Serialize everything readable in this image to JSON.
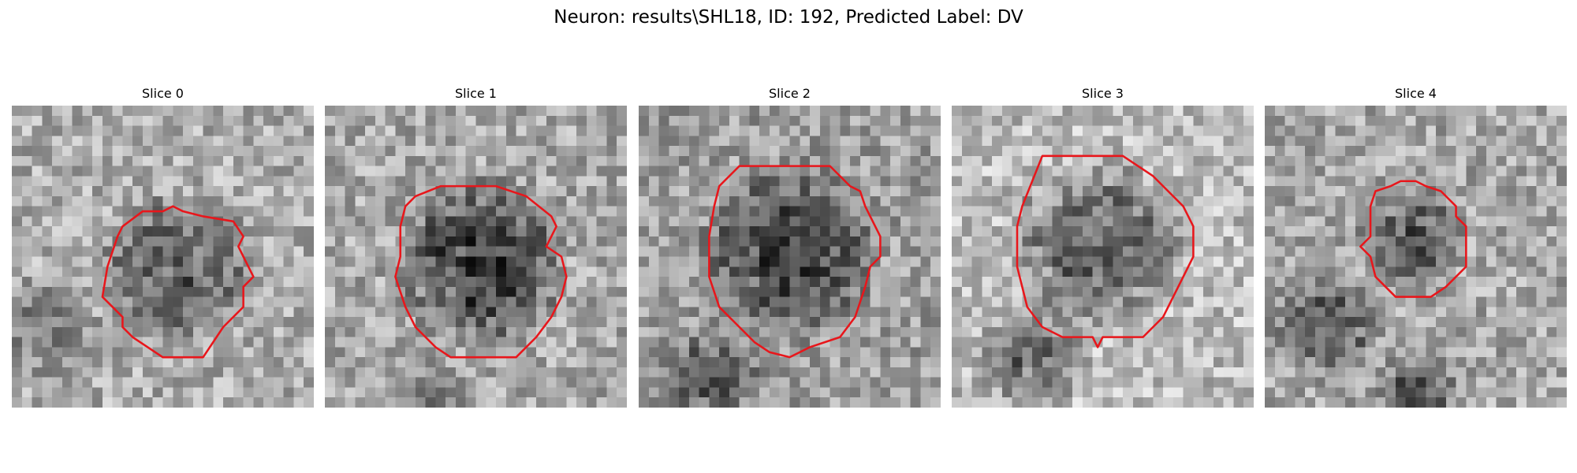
{
  "figure": {
    "title": "Neuron: results\\SHL18, ID: 192, Predicted Label: DV",
    "contour_color": "#e8161b",
    "colormap": "gray",
    "grid_size": 30,
    "panels": [
      {
        "title": "Slice 0",
        "seed": 11,
        "dark_blobs": [
          {
            "cx": 16.5,
            "cy": 16.5,
            "r": 8.5,
            "depth": 0.33
          }
        ],
        "base": 0.68,
        "edge_dark": [
          {
            "cx": 3,
            "cy": 22,
            "r": 6,
            "depth": 0.18
          }
        ],
        "contour": [
          [
            16,
            10
          ],
          [
            17,
            10.5
          ],
          [
            19,
            11
          ],
          [
            22,
            11.5
          ],
          [
            23,
            13
          ],
          [
            22.5,
            14
          ],
          [
            23,
            15
          ],
          [
            23.5,
            16
          ],
          [
            24,
            17
          ],
          [
            23,
            18
          ],
          [
            23,
            20
          ],
          [
            21,
            22
          ],
          [
            19,
            25
          ],
          [
            15,
            25
          ],
          [
            12,
            23
          ],
          [
            11,
            22
          ],
          [
            11,
            21
          ],
          [
            10,
            20
          ],
          [
            9,
            19
          ],
          [
            9.5,
            16
          ],
          [
            10.5,
            13
          ],
          [
            11,
            12
          ],
          [
            13,
            10.5
          ],
          [
            15,
            10.5
          ]
        ]
      },
      {
        "title": "Slice 1",
        "seed": 23,
        "dark_blobs": [
          {
            "cx": 15.5,
            "cy": 15.5,
            "r": 9,
            "depth": 0.42
          }
        ],
        "base": 0.66,
        "edge_dark": [
          {
            "cx": 10,
            "cy": 29,
            "r": 5,
            "depth": 0.15
          }
        ],
        "contour": [
          [
            11.5,
            8
          ],
          [
            17,
            8
          ],
          [
            20,
            9
          ],
          [
            22.5,
            11
          ],
          [
            23,
            12
          ],
          [
            22,
            14
          ],
          [
            23.5,
            15
          ],
          [
            24,
            17
          ],
          [
            23.5,
            19
          ],
          [
            22.5,
            21
          ],
          [
            21,
            23
          ],
          [
            19,
            25
          ],
          [
            16,
            25
          ],
          [
            12.5,
            25
          ],
          [
            11,
            24
          ],
          [
            9,
            22
          ],
          [
            8,
            20
          ],
          [
            7,
            17
          ],
          [
            7.5,
            15
          ],
          [
            7.5,
            12
          ],
          [
            8,
            10
          ],
          [
            9,
            9
          ]
        ]
      },
      {
        "title": "Slice 2",
        "seed": 37,
        "dark_blobs": [
          {
            "cx": 15,
            "cy": 14.5,
            "r": 9.5,
            "depth": 0.36
          }
        ],
        "base": 0.62,
        "edge_dark": [
          {
            "cx": 7,
            "cy": 27,
            "r": 6,
            "depth": 0.22
          }
        ],
        "contour": [
          [
            10,
            6
          ],
          [
            19,
            6
          ],
          [
            21,
            8
          ],
          [
            22,
            8.5
          ],
          [
            22.5,
            10
          ],
          [
            23,
            11
          ],
          [
            24,
            13
          ],
          [
            24,
            15
          ],
          [
            23,
            16
          ],
          [
            22.5,
            18
          ],
          [
            21.5,
            21
          ],
          [
            20,
            23
          ],
          [
            17,
            24
          ],
          [
            15,
            25
          ],
          [
            13,
            24.5
          ],
          [
            11.5,
            23.5
          ],
          [
            10,
            22
          ],
          [
            8,
            20
          ],
          [
            7,
            17
          ],
          [
            7,
            13
          ],
          [
            7.5,
            10
          ],
          [
            8,
            8
          ]
        ]
      },
      {
        "title": "Slice 3",
        "seed": 53,
        "dark_blobs": [
          {
            "cx": 14.5,
            "cy": 14,
            "r": 9.5,
            "depth": 0.34
          }
        ],
        "base": 0.74,
        "edge_dark": [
          {
            "cx": 8,
            "cy": 25,
            "r": 6,
            "depth": 0.32
          }
        ],
        "contour": [
          [
            9,
            5
          ],
          [
            17,
            5
          ],
          [
            20,
            7
          ],
          [
            23,
            10
          ],
          [
            24,
            12
          ],
          [
            24,
            15
          ],
          [
            23,
            17
          ],
          [
            22,
            19
          ],
          [
            21,
            21
          ],
          [
            19,
            23
          ],
          [
            15,
            23
          ],
          [
            14.5,
            24
          ],
          [
            14,
            23
          ],
          [
            11,
            23
          ],
          [
            9,
            22
          ],
          [
            7.5,
            20
          ],
          [
            7,
            18
          ],
          [
            6.5,
            16
          ],
          [
            6.5,
            12
          ],
          [
            7,
            10
          ]
        ]
      },
      {
        "title": "Slice 4",
        "seed": 71,
        "dark_blobs": [
          {
            "cx": 14.5,
            "cy": 13,
            "r": 6,
            "depth": 0.3
          }
        ],
        "base": 0.66,
        "edge_dark": [
          {
            "cx": 6,
            "cy": 22,
            "r": 6,
            "depth": 0.3
          },
          {
            "cx": 15,
            "cy": 28.5,
            "r": 5,
            "depth": 0.3
          }
        ],
        "contour": [
          [
            11,
            8.5
          ],
          [
            12.5,
            8
          ],
          [
            13.5,
            7.5
          ],
          [
            15,
            7.5
          ],
          [
            16,
            8
          ],
          [
            17.5,
            8.5
          ],
          [
            19,
            10
          ],
          [
            19,
            11
          ],
          [
            20,
            12
          ],
          [
            20,
            16
          ],
          [
            18,
            18
          ],
          [
            16.5,
            19
          ],
          [
            13,
            19
          ],
          [
            12,
            18
          ],
          [
            11,
            17
          ],
          [
            10.5,
            15
          ],
          [
            9.5,
            14
          ],
          [
            10.5,
            13
          ],
          [
            10.5,
            10
          ]
        ]
      }
    ]
  }
}
